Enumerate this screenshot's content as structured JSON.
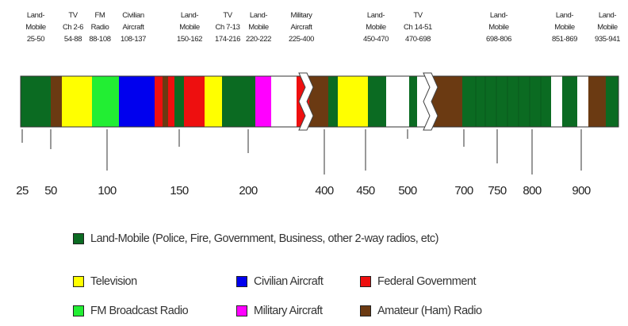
{
  "colors": {
    "land_mobile": "#0b6b22",
    "television": "#ffff00",
    "fm": "#22ee33",
    "civilian_aircraft": "#0000ee",
    "federal": "#ee0f0f",
    "military": "#ff00ff",
    "amateur": "#6b3a12",
    "gap": "#ffffff"
  },
  "top_labels": [
    "Land-\nMobile\n25-50",
    "TV\nCh 2-6\n54-88",
    "FM\nRadio\n88-108",
    "Civilian\nAircraft\n108-137",
    "Land-\nMobile\n150-162",
    "TV\nCh 7-13\n174-216",
    "Land-\nMobile\n220-222",
    "Military\nAircraft\n225-400",
    "Land-\nMobile\n450-470",
    "TV\nCh 14-51\n470-698",
    "Land-\nMobile\n698-806",
    "Land-\nMobile\n851-869",
    "Land-\nMobile\n935-941"
  ],
  "ticks": [
    "25",
    "50",
    "100",
    "150",
    "200",
    "400",
    "450",
    "500",
    "700",
    "750",
    "800",
    "900"
  ],
  "band_segments": [
    {
      "type": "land_mobile"
    },
    {
      "type": "amateur"
    },
    {
      "type": "television"
    },
    {
      "type": "fm"
    },
    {
      "type": "civilian_aircraft"
    },
    {
      "type": "federal"
    },
    {
      "type": "amateur"
    },
    {
      "type": "federal"
    },
    {
      "type": "land_mobile"
    },
    {
      "type": "federal"
    },
    {
      "type": "television"
    },
    {
      "type": "land_mobile"
    },
    {
      "type": "military"
    },
    {
      "type": "military"
    },
    {
      "type": "gap"
    },
    {
      "type": "federal"
    },
    {
      "type": "amateur"
    },
    {
      "type": "land_mobile"
    },
    {
      "type": "television"
    },
    {
      "type": "television"
    },
    {
      "type": "land_mobile"
    },
    {
      "type": "gap"
    },
    {
      "type": "land_mobile"
    },
    {
      "type": "gap"
    },
    {
      "type": "amateur"
    },
    {
      "type": "land_mobile"
    }
  ],
  "legend": {
    "land_mobile": "Land-Mobile (Police, Fire, Government, Business, other 2-way radios, etc)",
    "television": "Television",
    "fm": "FM Broadcast Radio",
    "civilian_aircraft": "Civilian Aircraft",
    "military": "Military Aircraft",
    "federal": "Federal Government",
    "amateur": "Amateur (Ham) Radio"
  }
}
